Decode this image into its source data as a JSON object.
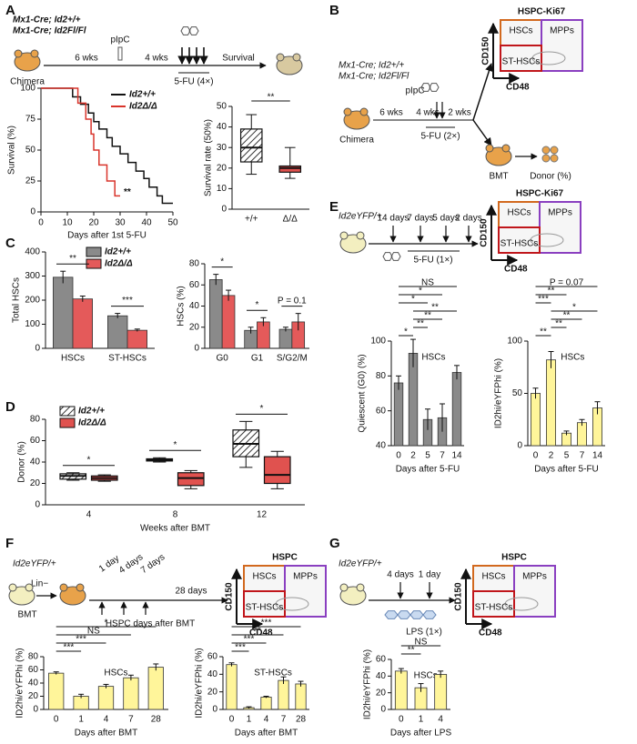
{
  "panel_letters": [
    "A",
    "B",
    "C",
    "D",
    "E",
    "F",
    "G"
  ],
  "schematics": {
    "A": {
      "genotype_1": "Mx1-Cre; Id2+/+",
      "genotype_2": "Mx1-Cre; Id2Fl/Fl",
      "interval_1": "6 wks",
      "treatment": "pIpC",
      "interval_2": "4 wks",
      "drug": "5-FU (4×)",
      "outcome": "Survival",
      "mouse": "Chimera"
    },
    "B": {
      "flow_title": "HSPC-Ki67",
      "y_marker": "CD150",
      "x_marker": "CD48",
      "gate_1": "HSCs",
      "gate_2": "MPPs",
      "gate_3": "ST-HSCs",
      "genotype_1": "Mx1-Cre; Id2+/+",
      "genotype_2": "Mx1-Cre; Id2Fl/Fl",
      "interval_1": "6 wks",
      "treatment": "pIpC",
      "interval_2": "4 wks",
      "interval_3": "2 wks",
      "drug": "5-FU (2×)",
      "mouse": "Chimera",
      "transplant": "BMT",
      "readout": "Donor (%)"
    },
    "E": {
      "flow_title": "HSPC-Ki67",
      "y_marker": "CD150",
      "x_marker": "CD48",
      "gate_1": "HSCs",
      "gate_2": "MPPs",
      "gate_3": "ST-HSCs",
      "mouse": "Id2eYFP/+",
      "time_1": "14 days",
      "time_2": "7 days",
      "time_3": "5 days",
      "time_4": "2 days",
      "drug": "5-FU (1×)"
    },
    "F": {
      "flow_title": "HSPC",
      "y_marker": "CD150",
      "x_marker": "CD48",
      "gate_1": "HSCs",
      "gate_2": "MPPs",
      "gate_3": "ST-HSCs",
      "mouse": "Id2eYFP/+",
      "cells": "Lin−",
      "transplant": "BMT",
      "time_1": "1 day",
      "time_2": "4 days",
      "time_3": "7 days",
      "time_4": "28 days",
      "timeline": "HSPC days after BMT"
    },
    "G": {
      "flow_title": "HSPC",
      "y_marker": "CD150",
      "x_marker": "CD48",
      "gate_1": "HSCs",
      "gate_2": "MPPs",
      "gate_3": "ST-HSCs",
      "mouse": "Id2eYFP/+",
      "time_1": "4 days",
      "time_2": "1 day",
      "drug": "LPS (1×)"
    }
  },
  "chart_data": [
    {
      "type": "line",
      "ylabel": "Survival (%)",
      "xlabel": "Days after 1st 5-FU",
      "xlim": [
        0,
        50
      ],
      "xticks": [
        0,
        10,
        20,
        30,
        40,
        50
      ],
      "ylim": [
        0,
        100
      ],
      "yticks": [
        0,
        25,
        50,
        75,
        100
      ],
      "annotation": "**",
      "series": [
        {
          "name": "Id2+/+",
          "color": "#111111",
          "x": [
            0,
            12,
            15,
            18,
            20,
            22,
            25,
            27,
            30,
            33,
            36,
            39,
            41,
            44,
            46,
            50
          ],
          "values": [
            100,
            93,
            87,
            80,
            73,
            67,
            60,
            53,
            47,
            40,
            33,
            27,
            20,
            13,
            7,
            7
          ]
        },
        {
          "name": "Id2Δ/Δ",
          "color": "#d9342b",
          "x": [
            0,
            14,
            17,
            19,
            20,
            22,
            25,
            28,
            30
          ],
          "values": [
            100,
            88,
            75,
            63,
            50,
            38,
            25,
            13,
            13
          ]
        }
      ]
    },
    {
      "type": "box",
      "ylabel": "Survival rate (50%)",
      "categories": [
        "+/+",
        "Δ/Δ"
      ],
      "ylim": [
        0,
        50
      ],
      "yticks": [
        0,
        10,
        20,
        30,
        40,
        50
      ],
      "fills": [
        "hatched",
        "#e0524f"
      ],
      "boxes": [
        {
          "min": 17,
          "q1": 23,
          "median": 30,
          "q3": 39,
          "max": 46
        },
        {
          "min": 15,
          "q1": 18,
          "median": 20,
          "q3": 21,
          "max": 30
        }
      ],
      "comparisons": [
        {
          "between": [
            "+/+",
            "Δ/Δ"
          ],
          "label": "**"
        }
      ]
    },
    {
      "type": "bar",
      "ylabel": "Total HSCs",
      "categories": [
        "HSCs",
        "ST-HSCs"
      ],
      "ylim": [
        0,
        400
      ],
      "yticks": [
        0,
        100,
        200,
        300,
        400
      ],
      "series": [
        {
          "name": "Id2+/+",
          "color": "#8a8a8a",
          "values": [
            295,
            135
          ],
          "errors": [
            25,
            10
          ]
        },
        {
          "name": "Id2Δ/Δ",
          "color": "#e45a5a",
          "values": [
            205,
            75
          ],
          "errors": [
            12,
            5
          ]
        }
      ],
      "comparisons": [
        {
          "category": "HSCs",
          "label": "**"
        },
        {
          "category": "ST-HSCs",
          "label": "***"
        }
      ]
    },
    {
      "type": "bar",
      "ylabel": "HSCs (%)",
      "categories": [
        "G0",
        "G1",
        "S/G2/M"
      ],
      "ylim": [
        0,
        80
      ],
      "yticks": [
        0,
        20,
        40,
        60,
        80
      ],
      "series": [
        {
          "color": "#8a8a8a",
          "values": [
            65,
            17,
            18
          ],
          "errors": [
            5,
            3,
            2
          ]
        },
        {
          "color": "#e45a5a",
          "values": [
            50,
            25,
            25
          ],
          "errors": [
            5,
            4,
            8
          ]
        }
      ],
      "comparisons": [
        {
          "category": "G0",
          "label": "*"
        },
        {
          "category": "G1",
          "label": "*"
        },
        {
          "category": "S/G2/M",
          "label": "P = 0.1"
        }
      ]
    },
    {
      "type": "box",
      "ylabel": "Donor (%)",
      "xlabel": "Weeks after BMT",
      "categories": [
        "4",
        "8",
        "12"
      ],
      "ylim": [
        0,
        80
      ],
      "yticks": [
        0,
        20,
        40,
        60,
        80
      ],
      "series": [
        {
          "name": "Id2+/+",
          "fill": "hatched",
          "boxes": [
            {
              "min": 23,
              "q1": 24,
              "median": 27,
              "q3": 29,
              "max": 30
            },
            {
              "min": 40,
              "q1": 41,
              "median": 42,
              "q3": 43,
              "max": 44
            },
            {
              "min": 35,
              "q1": 45,
              "median": 57,
              "q3": 70,
              "max": 78
            }
          ]
        },
        {
          "name": "Id2Δ/Δ",
          "fill": "#e0524f",
          "boxes": [
            {
              "min": 22,
              "q1": 23,
              "median": 25,
              "q3": 27,
              "max": 28
            },
            {
              "min": 15,
              "q1": 18,
              "median": 25,
              "q3": 30,
              "max": 32
            },
            {
              "min": 15,
              "q1": 20,
              "median": 28,
              "q3": 45,
              "max": 50
            }
          ]
        }
      ],
      "comparisons": [
        {
          "category": "4",
          "label": "*"
        },
        {
          "category": "8",
          "label": "*"
        },
        {
          "category": "12",
          "label": "*"
        }
      ]
    },
    {
      "type": "bar",
      "ylabel": "Quiescent (G0) (%)",
      "xlabel": "Days after 5-FU",
      "label": "HSCs",
      "categories": [
        "0",
        "2",
        "5",
        "7",
        "14"
      ],
      "ylim": [
        40,
        100
      ],
      "yticks": [
        40,
        60,
        80,
        100
      ],
      "color": "#8a8a8a",
      "values": [
        76,
        93,
        55,
        56,
        82
      ],
      "errors": [
        4,
        8,
        6,
        8,
        4
      ],
      "comparisons": [
        {
          "between": [
            "0",
            "14"
          ],
          "label": "NS"
        },
        {
          "between": [
            "0",
            "7"
          ],
          "label": "*"
        },
        {
          "between": [
            "0",
            "5"
          ],
          "label": "*"
        },
        {
          "between": [
            "2",
            "14"
          ],
          "label": "**"
        },
        {
          "between": [
            "2",
            "7"
          ],
          "label": "**"
        },
        {
          "between": [
            "2",
            "5"
          ],
          "label": "**"
        },
        {
          "between": [
            "0",
            "2"
          ],
          "label": "*"
        }
      ]
    },
    {
      "type": "bar",
      "ylabel": "ID2hi/eYFPhi (%)",
      "xlabel": "Days after 5-FU",
      "label": "HSCs",
      "categories": [
        "0",
        "2",
        "5",
        "7",
        "14"
      ],
      "ylim": [
        0,
        100
      ],
      "yticks": [
        0,
        50,
        100
      ],
      "color": "#fff59a",
      "values": [
        50,
        82,
        12,
        22,
        36
      ],
      "errors": [
        5,
        8,
        2,
        3,
        6
      ],
      "comparisons": [
        {
          "between": [
            "0",
            "14"
          ],
          "label": "P = 0.07"
        },
        {
          "between": [
            "0",
            "5"
          ],
          "label": "**"
        },
        {
          "between": [
            "0",
            "2"
          ],
          "label": "***"
        },
        {
          "between": [
            "2",
            "14"
          ],
          "label": "*"
        },
        {
          "between": [
            "2",
            "7"
          ],
          "label": "**"
        },
        {
          "between": [
            "2",
            "5"
          ],
          "label": "**"
        },
        {
          "between": [
            "0",
            "2"
          ],
          "label": "**"
        }
      ]
    },
    {
      "type": "bar",
      "ylabel": "ID2hi/eYFPhi (%)",
      "xlabel": "Days after BMT",
      "label": "HSCs",
      "categories": [
        "0",
        "1",
        "4",
        "7",
        "28"
      ],
      "ylim": [
        0,
        80
      ],
      "yticks": [
        0,
        20,
        40,
        60,
        80
      ],
      "color": "#fff59a",
      "values": [
        55,
        20,
        35,
        48,
        64
      ],
      "errors": [
        2,
        3,
        3,
        4,
        5
      ],
      "comparisons": [
        {
          "between": [
            "0",
            "28"
          ],
          "label": "*"
        },
        {
          "between": [
            "0",
            "7"
          ],
          "label": "NS"
        },
        {
          "between": [
            "0",
            "4"
          ],
          "label": "***"
        },
        {
          "between": [
            "0",
            "1"
          ],
          "label": "***"
        }
      ]
    },
    {
      "type": "bar",
      "ylabel": "ID2hi/eYFPhi (%)",
      "xlabel": "Days after BMT",
      "label": "ST-HSCs",
      "categories": [
        "0",
        "1",
        "4",
        "7",
        "28"
      ],
      "ylim": [
        0,
        60
      ],
      "yticks": [
        0,
        20,
        40,
        60
      ],
      "color": "#fff59a",
      "values": [
        51,
        2,
        14,
        33,
        29
      ],
      "errors": [
        2,
        1,
        1,
        4,
        3
      ],
      "comparisons": [
        {
          "between": [
            "0",
            "28"
          ],
          "label": "***"
        },
        {
          "between": [
            "0",
            "7"
          ],
          "label": "**"
        },
        {
          "between": [
            "0",
            "4"
          ],
          "label": "***"
        },
        {
          "between": [
            "0",
            "1"
          ],
          "label": "***"
        }
      ]
    },
    {
      "type": "bar",
      "ylabel": "ID2hi/eYFPhi (%)",
      "xlabel": "Days after LPS",
      "label": "HSCs",
      "categories": [
        "0",
        "1",
        "4"
      ],
      "ylim": [
        0,
        60
      ],
      "yticks": [
        0,
        20,
        40,
        60
      ],
      "color": "#fff59a",
      "values": [
        46,
        26,
        42
      ],
      "errors": [
        3,
        5,
        4
      ],
      "comparisons": [
        {
          "between": [
            "0",
            "4"
          ],
          "label": "NS"
        },
        {
          "between": [
            "0",
            "1"
          ],
          "label": "**"
        }
      ]
    }
  ]
}
